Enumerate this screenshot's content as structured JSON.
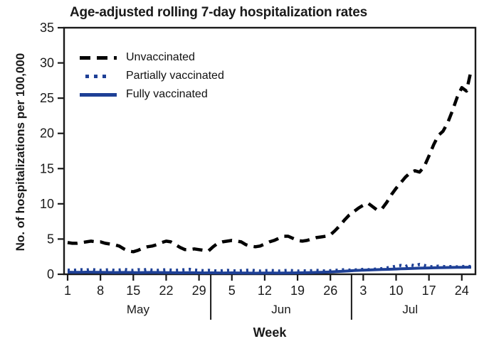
{
  "chart_data": {
    "type": "line",
    "title": "Age-adjusted rolling 7-day hospitalization rates",
    "xlabel": "Week",
    "ylabel": "No. of hospitalizations per 100,000",
    "ylim": [
      0,
      35
    ],
    "y_ticks": [
      0,
      5,
      10,
      15,
      20,
      25,
      30,
      35
    ],
    "x_start_date": "May 1",
    "x_tick_days": [
      0,
      7,
      14,
      21,
      28,
      35,
      42,
      49,
      56,
      63,
      70,
      77,
      84
    ],
    "x_tick_labels": [
      "1",
      "8",
      "15",
      "22",
      "29",
      "5",
      "12",
      "19",
      "26",
      "3",
      "10",
      "17",
      "24"
    ],
    "month_labels": [
      {
        "label": "May",
        "day": 15
      },
      {
        "label": "Jun",
        "day": 45.5
      },
      {
        "label": "Jul",
        "day": 73
      }
    ],
    "month_separator_days": [
      30.5,
      60.5
    ],
    "grid": false,
    "legend_position": "top-left-inside",
    "legend": [
      {
        "label": "Unvaccinated",
        "style": "dashed",
        "color": "#000000"
      },
      {
        "label": "Partially vaccinated",
        "style": "dotted",
        "color": "#1e4096"
      },
      {
        "label": "Fully vaccinated",
        "style": "solid",
        "color": "#1e4096"
      }
    ],
    "series": [
      {
        "name": "Unvaccinated",
        "style": "dashed",
        "color": "#000000",
        "values": [
          4.5,
          4.4,
          4.4,
          4.5,
          4.6,
          4.7,
          4.6,
          4.6,
          4.4,
          4.3,
          4.2,
          4.0,
          3.6,
          3.3,
          3.2,
          3.4,
          3.7,
          3.9,
          4.0,
          4.2,
          4.5,
          4.7,
          4.6,
          4.2,
          3.8,
          3.5,
          3.5,
          3.6,
          3.5,
          3.4,
          3.3,
          3.9,
          4.4,
          4.6,
          4.7,
          4.8,
          4.7,
          4.6,
          4.2,
          4.0,
          3.9,
          4.0,
          4.3,
          4.6,
          4.8,
          5.1,
          5.4,
          5.4,
          5.1,
          4.8,
          4.7,
          4.8,
          5.0,
          5.2,
          5.3,
          5.4,
          5.6,
          6.2,
          6.9,
          7.7,
          8.4,
          8.9,
          9.4,
          9.8,
          10.1,
          9.6,
          9.1,
          9.3,
          10.2,
          11.3,
          12.2,
          13.0,
          13.8,
          14.4,
          14.7,
          14.5,
          15.3,
          16.8,
          18.4,
          19.7,
          20.3,
          21.5,
          23.2,
          25.1,
          26.5,
          26.0,
          29.0
        ]
      },
      {
        "name": "Partially vaccinated",
        "style": "dotted",
        "color": "#1e4096",
        "values": [
          0.6,
          0.55,
          0.6,
          0.65,
          0.6,
          0.7,
          0.6,
          0.55,
          0.6,
          0.65,
          0.55,
          0.6,
          0.7,
          0.6,
          0.55,
          0.65,
          0.6,
          0.7,
          0.6,
          0.55,
          0.6,
          0.65,
          0.6,
          0.55,
          0.6,
          0.65,
          0.7,
          0.6,
          0.55,
          0.5,
          0.55,
          0.5,
          0.45,
          0.5,
          0.55,
          0.5,
          0.45,
          0.5,
          0.55,
          0.6,
          0.5,
          0.45,
          0.5,
          0.55,
          0.5,
          0.45,
          0.5,
          0.55,
          0.5,
          0.45,
          0.5,
          0.45,
          0.5,
          0.55,
          0.5,
          0.45,
          0.5,
          0.55,
          0.6,
          0.65,
          0.6,
          0.6,
          0.65,
          0.7,
          0.65,
          0.7,
          0.75,
          0.8,
          0.9,
          1.0,
          1.15,
          1.25,
          1.1,
          1.35,
          1.2,
          1.4,
          1.25,
          1.1,
          1.05,
          1.15,
          1.1,
          1.05,
          1.1,
          1.05,
          1.1,
          1.1,
          1.1
        ]
      },
      {
        "name": "Fully vaccinated",
        "style": "solid",
        "color": "#1e4096",
        "values": [
          0.3,
          0.28,
          0.27,
          0.28,
          0.3,
          0.29,
          0.28,
          0.27,
          0.26,
          0.25,
          0.24,
          0.25,
          0.26,
          0.25,
          0.24,
          0.23,
          0.24,
          0.25,
          0.26,
          0.25,
          0.24,
          0.23,
          0.22,
          0.21,
          0.2,
          0.21,
          0.22,
          0.21,
          0.2,
          0.19,
          0.2,
          0.2,
          0.19,
          0.18,
          0.19,
          0.2,
          0.19,
          0.18,
          0.17,
          0.16,
          0.15,
          0.16,
          0.17,
          0.18,
          0.17,
          0.16,
          0.17,
          0.18,
          0.19,
          0.2,
          0.21,
          0.22,
          0.24,
          0.26,
          0.28,
          0.3,
          0.33,
          0.36,
          0.4,
          0.44,
          0.48,
          0.52,
          0.55,
          0.58,
          0.61,
          0.64,
          0.66,
          0.68,
          0.7,
          0.72,
          0.75,
          0.78,
          0.8,
          0.82,
          0.85,
          0.87,
          0.89,
          0.9,
          0.92,
          0.94,
          0.95,
          0.96,
          0.97,
          0.98,
          0.99,
          1.0,
          1.0
        ]
      }
    ]
  },
  "colors": {
    "accent_blue": "#1e4096",
    "line_black": "#000000",
    "text": "#1a1a1a",
    "background": "#ffffff"
  }
}
